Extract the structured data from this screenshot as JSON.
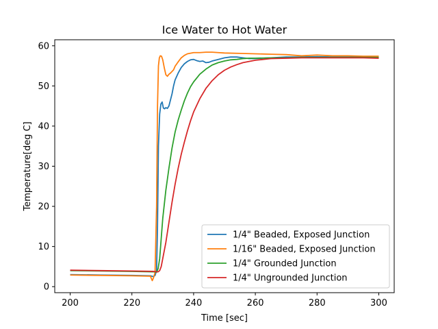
{
  "chart_data": {
    "type": "line",
    "title": "Ice Water to Hot Water",
    "xlabel": "Time [sec]",
    "ylabel": "Temperature[deg C]",
    "xlim": [
      195,
      305
    ],
    "ylim": [
      -1.5,
      61.5
    ],
    "xticks": [
      200,
      220,
      240,
      260,
      280,
      300
    ],
    "yticks": [
      0,
      10,
      20,
      30,
      40,
      50,
      60
    ],
    "grid": false,
    "legend_position": "lower-right",
    "series": [
      {
        "name": "1/4\" Beaded, Exposed Junction",
        "color": "#1f77b4",
        "x": [
          200,
          210,
          220,
          226,
          227,
          227.5,
          228,
          228.3,
          228.6,
          229,
          229.4,
          229.8,
          230.2,
          230.6,
          231,
          231.5,
          232,
          232.5,
          233,
          233.5,
          234,
          235,
          236,
          237,
          238,
          239,
          240,
          241,
          242,
          243,
          244,
          245,
          246,
          248,
          250,
          252,
          254,
          256,
          258,
          260,
          265,
          270,
          275,
          280,
          285,
          290,
          295,
          300
        ],
        "y": [
          3,
          2.9,
          2.8,
          2.7,
          2.5,
          2.8,
          4,
          15,
          35,
          43,
          45.5,
          46,
          44.5,
          44.3,
          44.6,
          44.4,
          45,
          46.5,
          48,
          50,
          51.5,
          53.2,
          54.6,
          55.5,
          56.1,
          56.5,
          56.6,
          56.3,
          56.1,
          56.2,
          55.8,
          55.9,
          56.2,
          56.6,
          57,
          57.2,
          57.2,
          57,
          56.8,
          56.8,
          57,
          57.2,
          57.2,
          57.3,
          57.2,
          57.2,
          57.2,
          57.1
        ]
      },
      {
        "name": "1/16\" Beaded, Exposed Junction",
        "color": "#ff7f0e",
        "x": [
          200,
          210,
          220,
          226,
          226.6,
          227,
          227.5,
          228,
          228.3,
          228.6,
          228.9,
          229.2,
          229.6,
          230,
          230.5,
          231,
          231.5,
          232,
          232.5,
          233,
          233.5,
          234,
          235,
          236,
          237,
          238,
          240,
          242,
          244,
          246,
          248,
          250,
          255,
          260,
          265,
          270,
          275,
          280,
          285,
          290,
          295,
          300
        ],
        "y": [
          2.9,
          2.8,
          2.7,
          2.6,
          1.5,
          2.2,
          3.5,
          20,
          45,
          55,
          57,
          57.5,
          57.4,
          56.5,
          54.5,
          52.8,
          52.4,
          52.9,
          53.2,
          53.6,
          54,
          54.9,
          56,
          57,
          57.6,
          58,
          58.3,
          58.3,
          58.4,
          58.4,
          58.3,
          58.2,
          58.1,
          58,
          57.9,
          57.8,
          57.5,
          57.7,
          57.5,
          57.5,
          57.4,
          57.4
        ]
      },
      {
        "name": "1/4\" Grounded Junction",
        "color": "#2ca02c",
        "x": [
          200,
          210,
          220,
          227,
          228,
          228.5,
          229,
          229.5,
          230,
          231,
          232,
          233,
          234,
          235,
          236,
          237,
          238,
          239,
          240,
          242,
          244,
          246,
          248,
          250,
          252,
          254,
          256,
          258,
          260,
          265,
          270,
          275,
          280,
          285,
          290,
          295,
          300
        ],
        "y": [
          4,
          3.9,
          3.8,
          3.7,
          3.6,
          4.5,
          7,
          12,
          17,
          24,
          29.5,
          34.5,
          38.5,
          41.5,
          44,
          46.3,
          48.2,
          49.8,
          51,
          52.9,
          54.2,
          55.2,
          55.8,
          56.2,
          56.5,
          56.6,
          56.8,
          56.9,
          56.9,
          57,
          57,
          57.1,
          57.1,
          57.1,
          57.1,
          57.1,
          57.1
        ]
      },
      {
        "name": "1/4\" Ungrounded Junction",
        "color": "#d62728",
        "x": [
          200,
          210,
          220,
          227,
          228,
          228.5,
          229,
          229.5,
          230,
          231,
          232,
          233,
          234,
          235,
          236,
          237,
          238,
          239,
          240,
          242,
          244,
          246,
          248,
          250,
          252,
          254,
          256,
          258,
          260,
          265,
          270,
          275,
          280,
          285,
          290,
          295,
          300
        ],
        "y": [
          4.1,
          4,
          3.9,
          3.8,
          3.7,
          3.7,
          4,
          5,
          7,
          11,
          16,
          21,
          25.5,
          29.5,
          33,
          36,
          38.8,
          41.3,
          43.5,
          46.8,
          49.4,
          51.3,
          52.8,
          53.9,
          54.7,
          55.3,
          55.8,
          56.1,
          56.4,
          56.8,
          56.9,
          57,
          57,
          57,
          57,
          57,
          56.9
        ]
      }
    ]
  }
}
